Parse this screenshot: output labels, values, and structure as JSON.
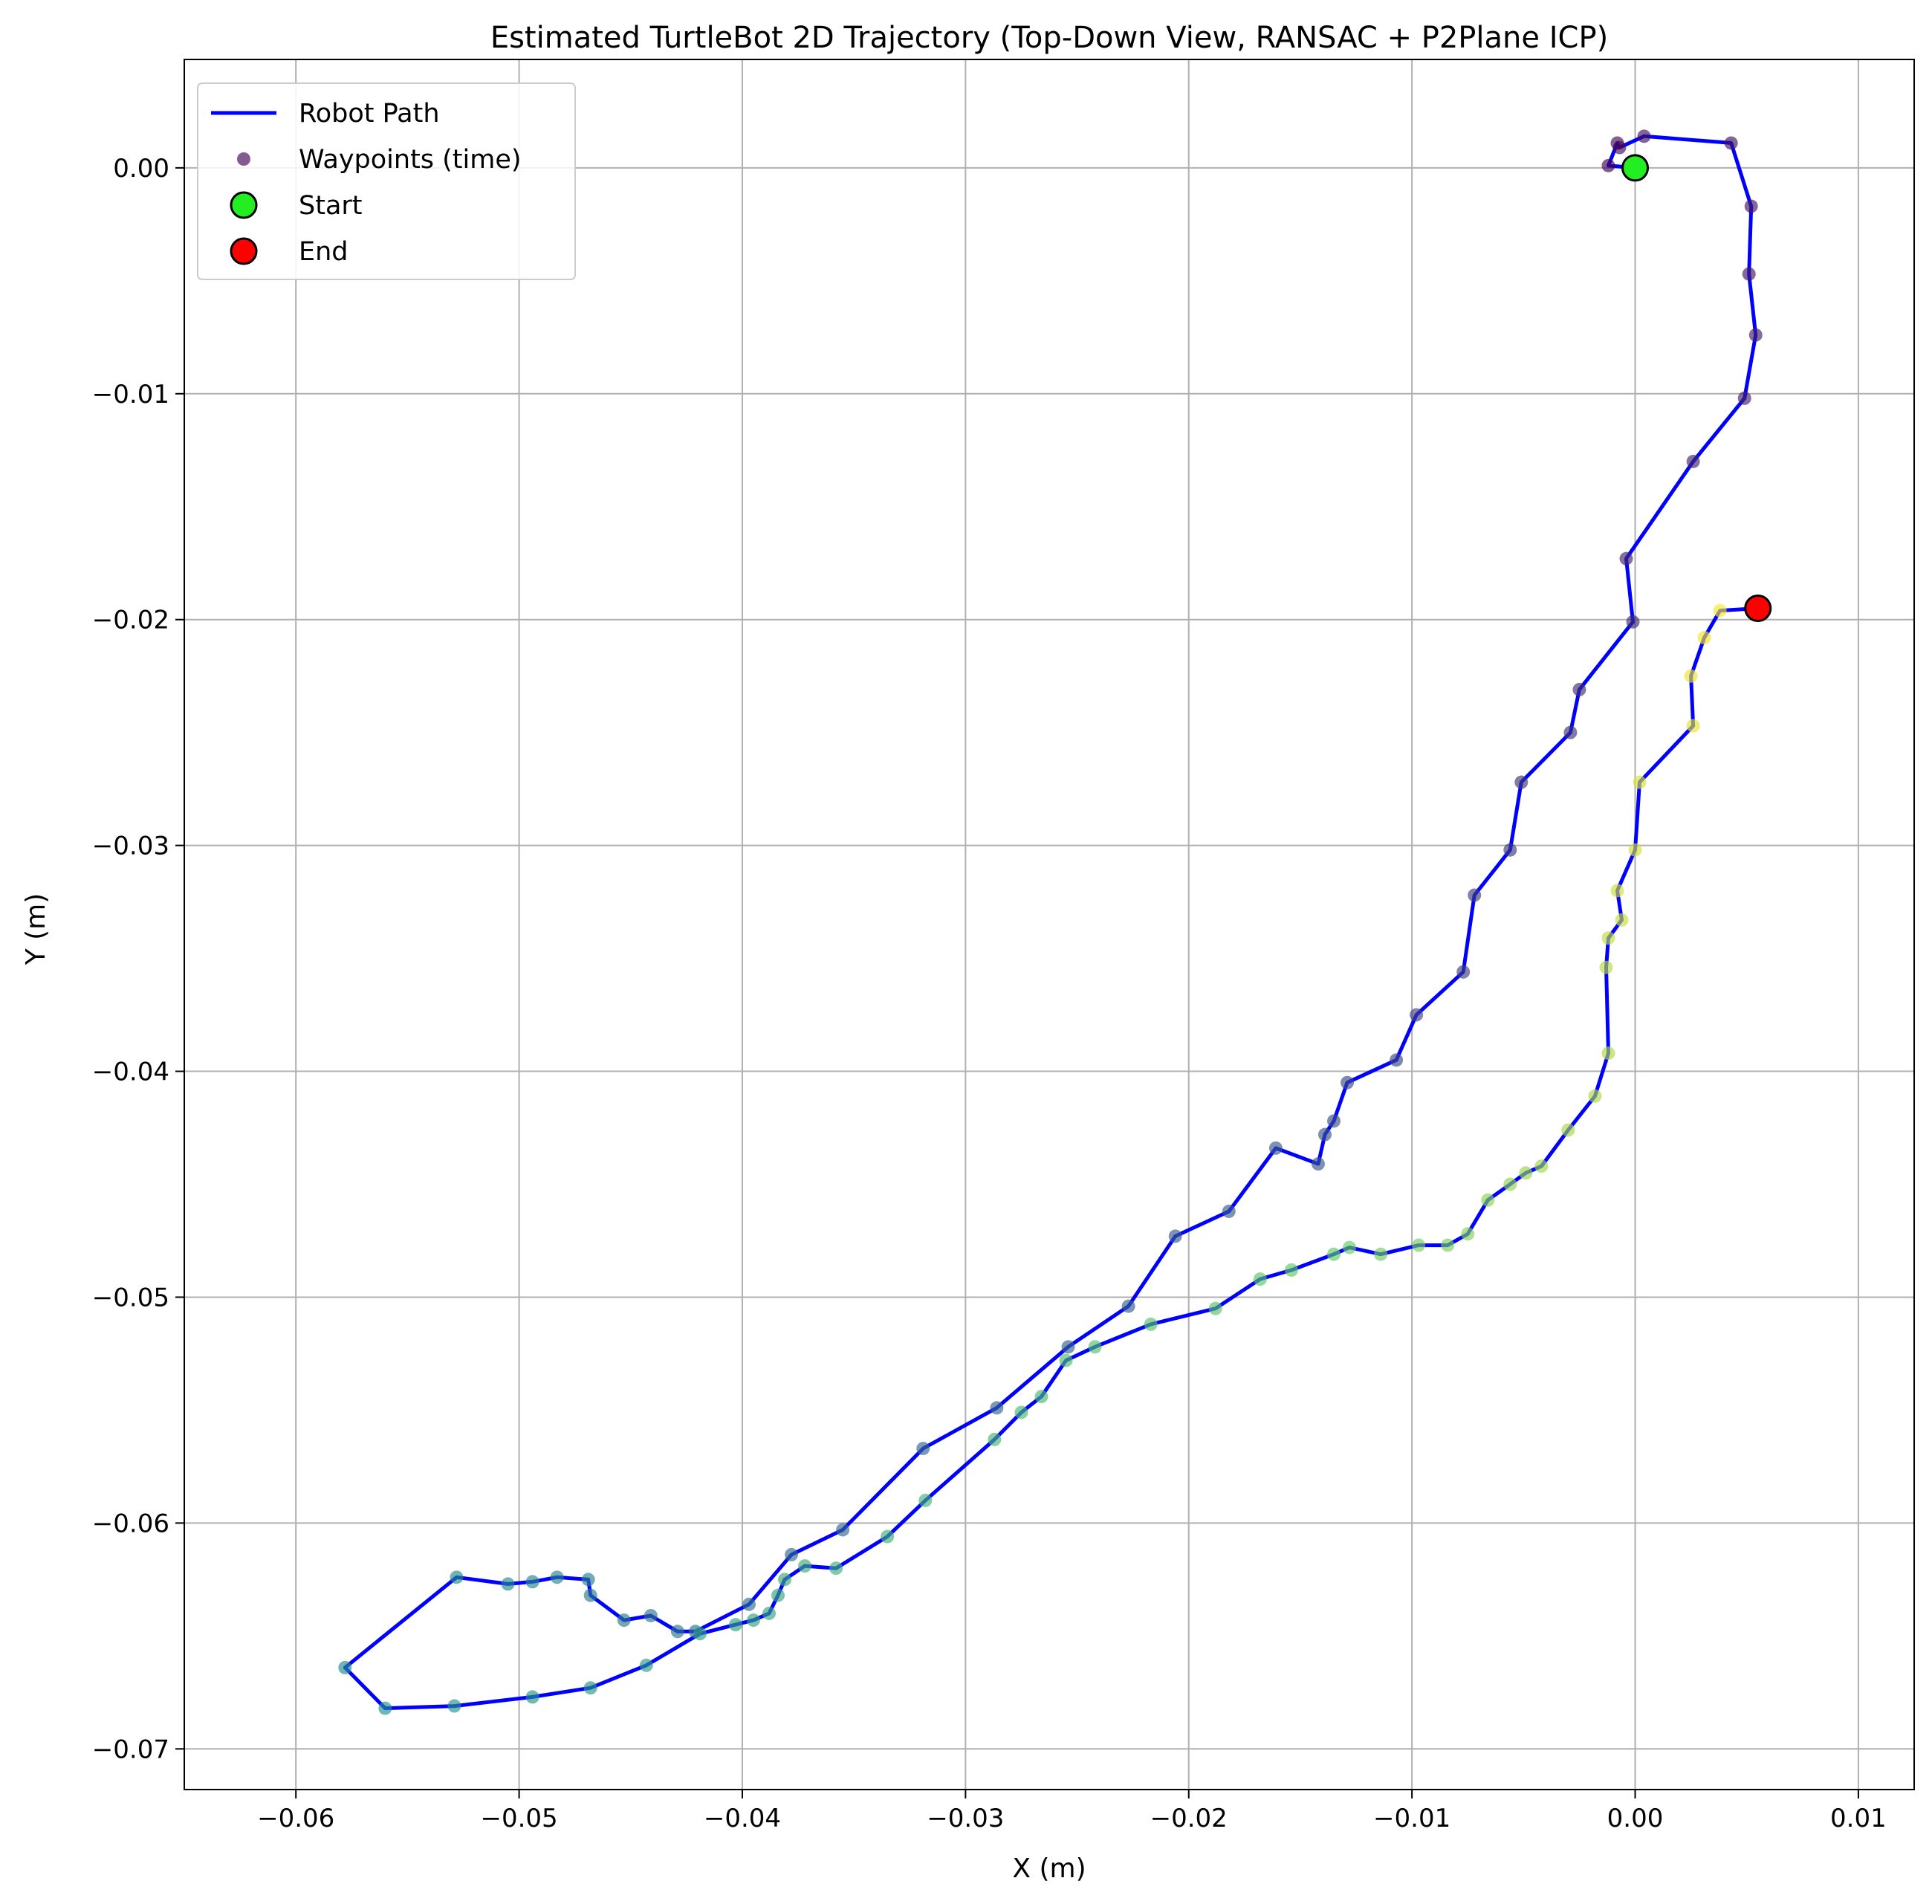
{
  "chart_data": {
    "type": "line",
    "title": "Estimated TurtleBot 2D Trajectory (Top-Down View, RANSAC + P2Plane ICP)",
    "xlabel": "X (m)",
    "ylabel": "Y (m)",
    "xlim": [
      -0.065,
      0.0125
    ],
    "ylim": [
      -0.0718,
      0.0048
    ],
    "grid": true,
    "legend_position": "top-left",
    "x_ticks": [
      -0.06,
      -0.05,
      -0.04,
      -0.03,
      -0.02,
      -0.01,
      0.0,
      0.01
    ],
    "x_tick_labels": [
      "−0.06",
      "−0.05",
      "−0.04",
      "−0.03",
      "−0.02",
      "−0.01",
      "0.00",
      "0.01"
    ],
    "y_ticks": [
      0.0,
      -0.01,
      -0.02,
      -0.03,
      -0.04,
      -0.05,
      -0.06,
      -0.07
    ],
    "y_tick_labels": [
      "0.00",
      "−0.01",
      "−0.02",
      "−0.03",
      "−0.04",
      "−0.05",
      "−0.06",
      "−0.07"
    ],
    "colors": {
      "path": "#0000ff",
      "start": "#22ee22",
      "end": "#ff0000",
      "waypoint_colormap_start": "#440154",
      "waypoint_colormap_end": "#fde725"
    },
    "legend": [
      {
        "label": "Robot Path",
        "kind": "line"
      },
      {
        "label": "Waypoints (time)",
        "kind": "dot"
      },
      {
        "label": "Start",
        "kind": "start"
      },
      {
        "label": "End",
        "kind": "end"
      }
    ],
    "series": [
      {
        "name": "Robot Path",
        "points": [
          [
            0.0,
            0.0
          ],
          [
            -0.0012,
            0.0001
          ],
          [
            -0.0008,
            0.0011
          ],
          [
            -0.0007,
            0.0009
          ],
          [
            0.0004,
            0.0014
          ],
          [
            0.0043,
            0.0011
          ],
          [
            0.0052,
            -0.0017
          ],
          [
            0.0051,
            -0.0047
          ],
          [
            0.0054,
            -0.0074
          ],
          [
            0.0049,
            -0.0102
          ],
          [
            0.0026,
            -0.013
          ],
          [
            -0.0004,
            -0.0173
          ],
          [
            -0.0001,
            -0.0201
          ],
          [
            -0.0025,
            -0.0231
          ],
          [
            -0.0029,
            -0.025
          ],
          [
            -0.0051,
            -0.0272
          ],
          [
            -0.0056,
            -0.0302
          ],
          [
            -0.0072,
            -0.0322
          ],
          [
            -0.0077,
            -0.0356
          ],
          [
            -0.0098,
            -0.0375
          ],
          [
            -0.0107,
            -0.0395
          ],
          [
            -0.0129,
            -0.0405
          ],
          [
            -0.0135,
            -0.0422
          ],
          [
            -0.0139,
            -0.0428
          ],
          [
            -0.0142,
            -0.0441
          ],
          [
            -0.0161,
            -0.0434
          ],
          [
            -0.0182,
            -0.0462
          ],
          [
            -0.0206,
            -0.0473
          ],
          [
            -0.0227,
            -0.0504
          ],
          [
            -0.0254,
            -0.0522
          ],
          [
            -0.0286,
            -0.0549
          ],
          [
            -0.0319,
            -0.0567
          ],
          [
            -0.0355,
            -0.0603
          ],
          [
            -0.0378,
            -0.0614
          ],
          [
            -0.0397,
            -0.0636
          ],
          [
            -0.0421,
            -0.0648
          ],
          [
            -0.0429,
            -0.0648
          ],
          [
            -0.0441,
            -0.0641
          ],
          [
            -0.0453,
            -0.0643
          ],
          [
            -0.0468,
            -0.0632
          ],
          [
            -0.0469,
            -0.0625
          ],
          [
            -0.0483,
            -0.0624
          ],
          [
            -0.0494,
            -0.0626
          ],
          [
            -0.0505,
            -0.0627
          ],
          [
            -0.0528,
            -0.0624
          ],
          [
            -0.0578,
            -0.0664
          ],
          [
            -0.056,
            -0.0682
          ],
          [
            -0.0529,
            -0.0681
          ],
          [
            -0.0494,
            -0.0677
          ],
          [
            -0.0468,
            -0.0673
          ],
          [
            -0.0443,
            -0.0663
          ],
          [
            -0.0419,
            -0.0649
          ],
          [
            -0.0403,
            -0.0645
          ],
          [
            -0.0395,
            -0.0643
          ],
          [
            -0.0388,
            -0.064
          ],
          [
            -0.0384,
            -0.0632
          ],
          [
            -0.0381,
            -0.0625
          ],
          [
            -0.0372,
            -0.0619
          ],
          [
            -0.0358,
            -0.062
          ],
          [
            -0.0335,
            -0.0606
          ],
          [
            -0.0318,
            -0.059
          ],
          [
            -0.0287,
            -0.0563
          ],
          [
            -0.0275,
            -0.0551
          ],
          [
            -0.0266,
            -0.0544
          ],
          [
            -0.0255,
            -0.0528
          ],
          [
            -0.0242,
            -0.0522
          ],
          [
            -0.0217,
            -0.0512
          ],
          [
            -0.0188,
            -0.0505
          ],
          [
            -0.0168,
            -0.0492
          ],
          [
            -0.0154,
            -0.0488
          ],
          [
            -0.0135,
            -0.0481
          ],
          [
            -0.0128,
            -0.0478
          ],
          [
            -0.0114,
            -0.0481
          ],
          [
            -0.0097,
            -0.0477
          ],
          [
            -0.0084,
            -0.0477
          ],
          [
            -0.0075,
            -0.0472
          ],
          [
            -0.0066,
            -0.0457
          ],
          [
            -0.0056,
            -0.045
          ],
          [
            -0.0049,
            -0.0445
          ],
          [
            -0.0042,
            -0.0442
          ],
          [
            -0.003,
            -0.0426
          ],
          [
            -0.0018,
            -0.0411
          ],
          [
            -0.0012,
            -0.0392
          ],
          [
            -0.0013,
            -0.0354
          ],
          [
            -0.0012,
            -0.0341
          ],
          [
            -0.0006,
            -0.0333
          ],
          [
            -0.0008,
            -0.032
          ],
          [
            0.0,
            -0.0302
          ],
          [
            0.0002,
            -0.0272
          ],
          [
            0.0026,
            -0.0247
          ],
          [
            0.0025,
            -0.0225
          ],
          [
            0.0031,
            -0.0208
          ],
          [
            0.0038,
            -0.0196
          ],
          [
            0.0055,
            -0.0195
          ]
        ]
      }
    ],
    "start": [
      0.0,
      0.0
    ],
    "end": [
      0.0055,
      -0.0195
    ]
  }
}
